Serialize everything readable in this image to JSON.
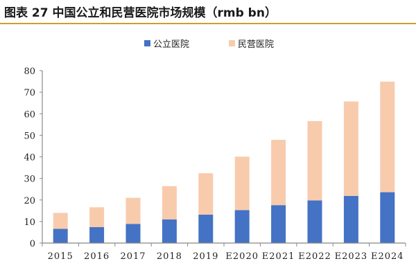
{
  "title": "图表 27  中国公立和民营医院市场规模（rmb bn）",
  "chart_data": {
    "type": "bar",
    "stacked": true,
    "title": "图表 27  中国公立和民营医院市场规模（rmb bn）",
    "xlabel": "",
    "ylabel": "",
    "categories": [
      "2015",
      "2016",
      "2017",
      "2018",
      "2019",
      "E2020",
      "E2021",
      "E2022",
      "E2023",
      "E2024"
    ],
    "series": [
      {
        "name": "公立医院",
        "color": "#4472c4",
        "values": [
          6.6,
          7.4,
          8.9,
          11.0,
          13.2,
          15.3,
          17.6,
          19.8,
          21.9,
          23.6
        ]
      },
      {
        "name": "民营医院",
        "color": "#f8cbad",
        "values": [
          7.4,
          9.2,
          12.1,
          15.4,
          19.2,
          24.8,
          30.3,
          36.8,
          43.8,
          51.3
        ]
      }
    ],
    "ylim": [
      0,
      80
    ],
    "yticks": [
      0,
      10,
      20,
      30,
      40,
      50,
      60,
      70,
      80
    ],
    "grid": false,
    "legend": "top-center"
  }
}
